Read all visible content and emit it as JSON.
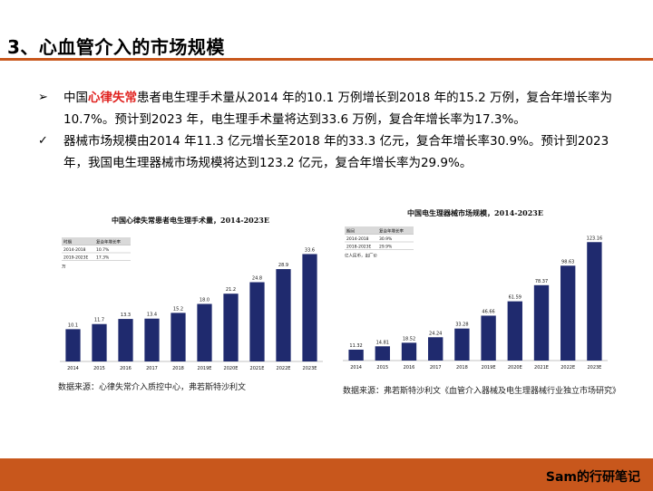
{
  "header": {
    "title": "3、心血管介入的市场规模"
  },
  "bullets": {
    "b1": {
      "marker": "➢",
      "pre": "中国",
      "highlight": "心律失常",
      "post": "患者电生理手术量从2014 年的10.1 万例增长到2018 年的15.2 万例，复合年增长率为10.7%。预计到2023 年，电生理手术量将达到33.6 万例，复合年增长率为17.3%。"
    },
    "b2": {
      "marker": "✓",
      "text": "器械市场规模由2014 年11.3 亿元增长至2018 年的33.3 亿元，复合年增长率30.9%。预计到2023 年，我国电生理器械市场规模将达到123.2 亿元，复合年增长率为29.9%。"
    }
  },
  "chart_data": [
    {
      "type": "bar",
      "title": "中国心律失常患者电生理手术量，2014-2023E",
      "categories": [
        "2014",
        "2015",
        "2016",
        "2017",
        "2018",
        "2019E",
        "2020E",
        "2021E",
        "2022E",
        "2023E"
      ],
      "values": [
        10.1,
        11.7,
        13.3,
        13.4,
        15.2,
        18.0,
        21.2,
        24.8,
        28.9,
        33.6
      ],
      "value_labels": [
        "10.1",
        "11.7",
        "13.3",
        "13.4",
        "15.2",
        "18.0",
        "21.2",
        "24.8",
        "28.9",
        "33.6"
      ],
      "ylim": [
        0,
        36
      ],
      "bar_color": "#1f2a6e",
      "inset_table": {
        "header": [
          "时期",
          "复合年增长率"
        ],
        "rows": [
          [
            "2014-2018",
            "10.7%"
          ],
          [
            "2019-2023E",
            "17.3%"
          ]
        ]
      },
      "unit": "万"
    },
    {
      "type": "bar",
      "title": "中国电生理器械市场规模，2014-2023E",
      "categories": [
        "2014",
        "2015",
        "2016",
        "2017",
        "2018",
        "2019E",
        "2020E",
        "2021E",
        "2022E",
        "2023E"
      ],
      "values": [
        11.32,
        14.81,
        18.52,
        24.24,
        33.28,
        46.66,
        61.59,
        78.37,
        98.63,
        123.16
      ],
      "value_labels": [
        "11.32",
        "14.81",
        "18.52",
        "24.24",
        "33.28",
        "46.66",
        "61.59",
        "78.37",
        "98.63",
        "123.16"
      ],
      "ylim": [
        0,
        130
      ],
      "bar_color": "#1f2a6e",
      "inset_table": {
        "header": [
          "期间",
          "复合年增长率"
        ],
        "rows": [
          [
            "2014-2018",
            "30.9%"
          ],
          [
            "2018-2023E",
            "29.9%"
          ]
        ]
      },
      "unit": "亿人民币，出厂价"
    }
  ],
  "sources": {
    "left": "数据来源：心律失常介入质控中心，弗若斯特沙利文",
    "right": "数据来源：弗若斯特沙利文《血管介入器械及电生理器械行业独立市场研究》"
  },
  "footer": {
    "brand": "Sam的行研笔记"
  }
}
